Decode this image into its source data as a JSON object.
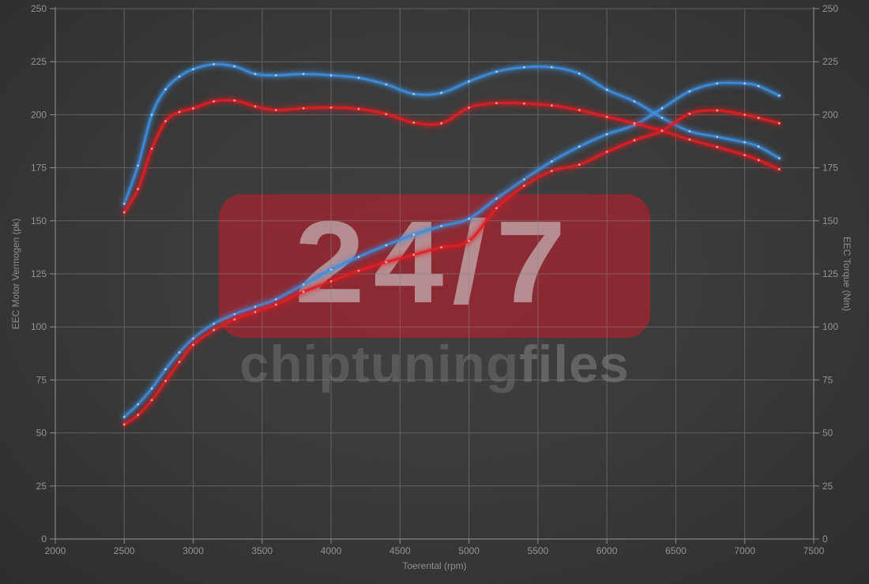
{
  "watermark": {
    "badge_text": "24/7",
    "brand_bold": "chiptuning",
    "brand_light": "files",
    "badge_color": "#c01c2c"
  },
  "chart_data": {
    "type": "line",
    "title": "",
    "grid": true,
    "legend": "none",
    "x_axis": {
      "label": "Toerental (rpm)",
      "min": 2000,
      "max": 7500,
      "tick_step": 500,
      "ticks": [
        "2000",
        "2500",
        "3000",
        "3500",
        "4000",
        "4500",
        "5000",
        "5500",
        "6000",
        "6500",
        "7000",
        "7500"
      ]
    },
    "y_axis_left": {
      "label": "EEC Motor Vermogen (pk)",
      "min": 0,
      "max": 250,
      "tick_step": 25,
      "ticks": [
        "0",
        "25",
        "50",
        "75",
        "100",
        "125",
        "150",
        "175",
        "200",
        "225",
        "250"
      ]
    },
    "y_axis_right": {
      "label": "EEC Torque (Nm)",
      "min": 0,
      "max": 250,
      "tick_step": 25,
      "ticks": [
        "0",
        "25",
        "50",
        "75",
        "100",
        "125",
        "150",
        "175",
        "200",
        "225",
        "250"
      ]
    },
    "rpm": [
      2500,
      2600,
      2700,
      2800,
      2900,
      3000,
      3150,
      3300,
      3450,
      3600,
      3800,
      4000,
      4200,
      4400,
      4600,
      4800,
      5000,
      5200,
      5400,
      5600,
      5800,
      6000,
      6200,
      6400,
      6600,
      6800,
      7000,
      7100,
      7250
    ],
    "series": [
      {
        "id": "torque-blue",
        "color": "#3e8ede",
        "marker_color": "#b4d6f8",
        "axis": "right",
        "unit": "Nm",
        "values": [
          158,
          176,
          200,
          212,
          218,
          221.5,
          223.8,
          222.8,
          219.2,
          218.6,
          219.2,
          218.6,
          217.4,
          214.3,
          209.8,
          210.3,
          215.7,
          220.3,
          222.4,
          222.4,
          219.4,
          211.8,
          206.3,
          198.6,
          192.2,
          189.6,
          187.0,
          185.0,
          179.5
        ]
      },
      {
        "id": "power-blue",
        "color": "#3e8ede",
        "marker_color": "#b4d6f8",
        "axis": "left",
        "unit": "pk",
        "values": [
          57.5,
          63.5,
          71.0,
          80.0,
          88.0,
          94.5,
          101.5,
          106.0,
          109.5,
          113.0,
          120.0,
          127.0,
          133.0,
          138.5,
          143.5,
          147.5,
          151.0,
          160.5,
          169.5,
          178.0,
          185.0,
          190.8,
          195.2,
          203.0,
          211.0,
          214.8,
          214.8,
          213.5,
          209.0
        ]
      },
      {
        "id": "torque-red",
        "color": "#e01e24",
        "marker_color": "#ffa8a8",
        "axis": "right",
        "unit": "Nm",
        "values": [
          154,
          165,
          184,
          197,
          201.3,
          203.0,
          206.3,
          206.7,
          203.9,
          202.2,
          203.1,
          203.4,
          202.7,
          200.3,
          196.3,
          196.0,
          203.3,
          205.5,
          205.3,
          204.4,
          202.2,
          199.0,
          196.0,
          192.4,
          188.3,
          184.8,
          181.0,
          178.6,
          174.3
        ]
      },
      {
        "id": "power-red",
        "color": "#e01e24",
        "marker_color": "#ffa8a8",
        "axis": "left",
        "unit": "pk",
        "values": [
          54.0,
          58.5,
          65.5,
          74.5,
          83.5,
          91.5,
          98.5,
          103.5,
          107.0,
          110.5,
          116.5,
          121.5,
          126.5,
          130.5,
          134.0,
          137.5,
          140.5,
          156.0,
          166.5,
          173.5,
          176.5,
          182.5,
          188.0,
          192.5,
          200.5,
          202.0,
          200.0,
          198.5,
          196.0
        ]
      }
    ]
  }
}
